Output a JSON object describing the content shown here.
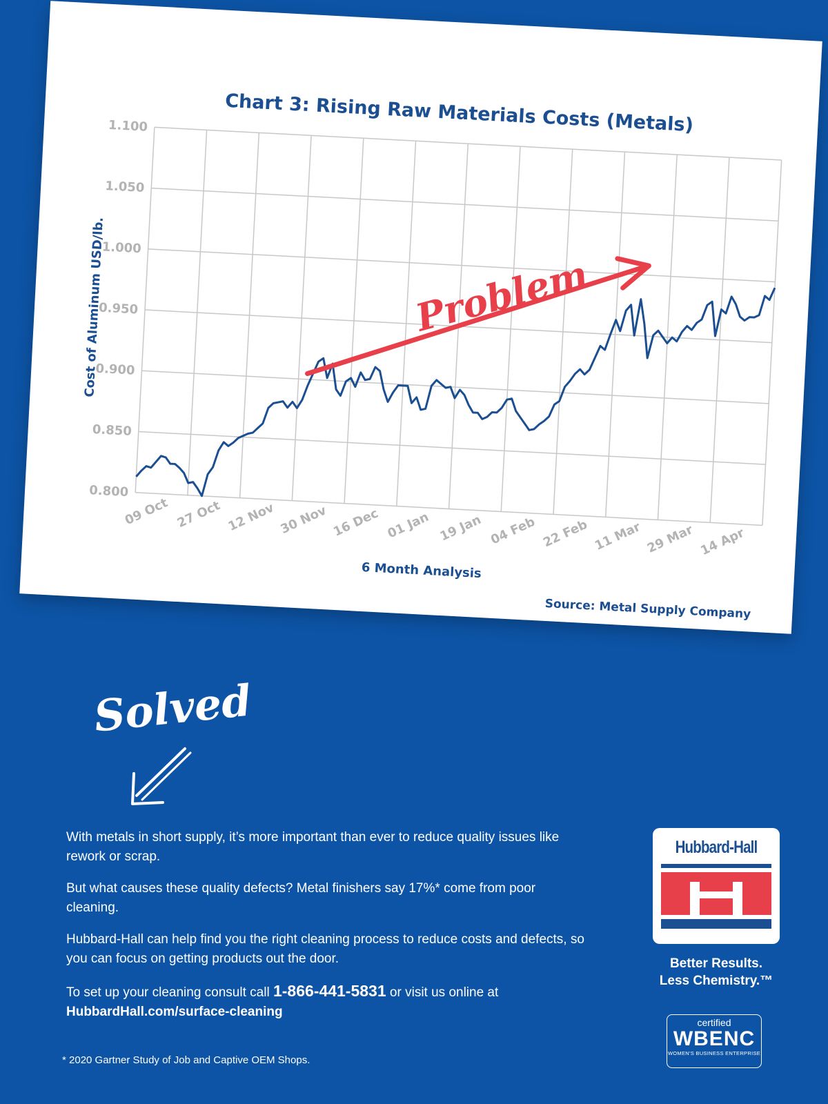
{
  "colors": {
    "background": "#0d54a6",
    "card": "#ffffff",
    "series_line": "#1b4f91",
    "problem_annotation": "#e8404a",
    "grid": "#c8c8c8",
    "tick_labels": "#b3b3b3"
  },
  "chart_data": {
    "type": "line",
    "title": "Chart 3: Rising Raw Materials Costs (Metals)",
    "xlabel": "6 Month Analysis",
    "ylabel": "Cost of Aluminum USD/lb.",
    "source": "Source: Metal Supply Company",
    "ylim": [
      0.8,
      1.1
    ],
    "y_ticks": [
      "0.800",
      "0.850",
      "0.900",
      "0.950",
      "1.000",
      "1.050",
      "1.100"
    ],
    "x_ticks": [
      "09 Oct",
      "27 Oct",
      "12 Nov",
      "30 Nov",
      "16 Dec",
      "01 Jan",
      "19 Jan",
      "04 Feb",
      "22 Feb",
      "11 Mar",
      "29 Mar",
      "14 Apr"
    ],
    "grid": true,
    "annotation": "Problem",
    "series": [
      {
        "values": [
          0.813,
          0.818,
          0.822,
          0.821,
          0.826,
          0.831,
          0.83,
          0.825,
          0.825,
          0.822,
          0.818,
          0.81,
          0.811,
          0.806,
          0.8,
          0.818,
          0.824,
          0.838,
          0.845,
          0.842,
          0.845,
          0.849,
          0.851,
          0.853,
          0.854,
          0.858,
          0.862,
          0.875,
          0.879,
          0.88,
          0.881,
          0.876,
          0.881,
          0.876,
          0.883,
          0.895,
          0.905,
          0.915,
          0.918,
          0.902,
          0.914,
          0.893,
          0.888,
          0.9,
          0.903,
          0.896,
          0.908,
          0.902,
          0.903,
          0.913,
          0.91,
          0.895,
          0.885,
          0.893,
          0.899,
          0.899,
          0.899,
          0.885,
          0.89,
          0.88,
          0.881,
          0.9,
          0.905,
          0.902,
          0.899,
          0.9,
          0.891,
          0.898,
          0.894,
          0.886,
          0.88,
          0.88,
          0.875,
          0.877,
          0.881,
          0.881,
          0.885,
          0.892,
          0.893,
          0.883,
          0.878,
          0.873,
          0.868,
          0.869,
          0.873,
          0.876,
          0.88,
          0.89,
          0.893,
          0.905,
          0.91,
          0.916,
          0.92,
          0.916,
          0.92,
          0.93,
          0.94,
          0.937,
          0.95,
          0.962,
          0.953,
          0.97,
          0.975,
          0.95,
          0.98,
          0.96,
          0.932,
          0.951,
          0.955,
          0.95,
          0.945,
          0.95,
          0.947,
          0.955,
          0.96,
          0.957,
          0.963,
          0.966,
          0.978,
          0.981,
          0.953,
          0.975,
          0.972,
          0.986,
          0.98,
          0.97,
          0.967,
          0.97,
          0.97,
          0.972,
          0.988,
          0.985,
          0.995
        ]
      }
    ]
  },
  "solved_label": "Solved",
  "body": {
    "p1": "With metals in short supply, it’s more important than ever to reduce quality issues like rework or scrap.",
    "p2": "But what causes these quality defects? Metal finishers say 17%* come from poor cleaning.",
    "p3": "Hubbard-Hall can help find you the right cleaning process to reduce costs and defects, so you can focus on getting products out the door.",
    "p4_prefix": "To set up your cleaning consult call ",
    "phone": "1-866-441-5831",
    "p4_middle": " or visit us online at",
    "url": "HubbardHall.com/surface-cleaning"
  },
  "footnote": "* 2020 Gartner Study of Job and Captive OEM Shops.",
  "logo": {
    "wordmark": "Hubbard-Hall",
    "tagline_line1": "Better Results.",
    "tagline_line2": "Less Chemistry.™"
  },
  "wbenc": {
    "certified": "certified",
    "name": "WBENC",
    "subtitle": "WOMEN'S BUSINESS ENTERPRISE"
  }
}
